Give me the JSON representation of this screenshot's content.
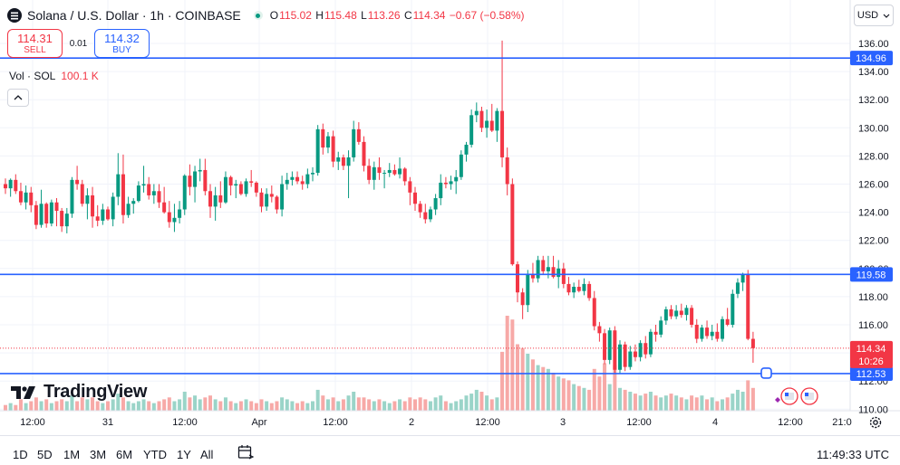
{
  "header": {
    "symbol": "Solana / U.S. Dollar · 1h · COINBASE",
    "ohlc": [
      {
        "k": "O",
        "v": "115.02"
      },
      {
        "k": "H",
        "v": "115.48"
      },
      {
        "k": "L",
        "v": "113.26"
      },
      {
        "k": "C",
        "v": "114.34"
      }
    ],
    "change": "−0.67 (−0.58%)",
    "currency": "USD"
  },
  "trade": {
    "sell_price": "114.31",
    "sell_label": "SELL",
    "spread": "0.01",
    "buy_price": "114.32",
    "buy_label": "BUY"
  },
  "volume": {
    "label": "Vol · SOL",
    "value": "100.1 K"
  },
  "logo_text": "TradingView",
  "timeframes": [
    "1D",
    "5D",
    "1M",
    "3M",
    "6M",
    "YTD",
    "1Y",
    "All"
  ],
  "clock": "11:49:33 UTC",
  "colors": {
    "up": "#089981",
    "down": "#f23645",
    "hline": "#2962ff",
    "up_vol": "#9ad4c8",
    "down_vol": "#f7a9a7"
  },
  "chart_data": {
    "type": "candlestick",
    "y_ticks": [
      110,
      112,
      114,
      116,
      118,
      120,
      122,
      124,
      126,
      128,
      130,
      132,
      134,
      136
    ],
    "x_tick_labels": [
      "12:00",
      "31",
      "12:00",
      "Apr",
      "12:00",
      "2",
      "12:00",
      "3",
      "12:00",
      "4",
      "12:00",
      "21:0"
    ],
    "horizontal_lines": [
      134.96,
      119.58,
      112.53
    ],
    "last_price": {
      "value": "114.34",
      "countdown": "10:26"
    },
    "candles": [
      [
        126.0,
        126.4,
        125.3,
        125.7
      ],
      [
        125.7,
        126.4,
        125.1,
        126.3
      ],
      [
        126.3,
        126.7,
        125.3,
        125.5
      ],
      [
        125.5,
        126.1,
        124.5,
        124.7
      ],
      [
        124.7,
        125.9,
        124.2,
        125.4
      ],
      [
        125.4,
        125.8,
        124.0,
        124.5
      ],
      [
        124.5,
        124.8,
        122.8,
        123.1
      ],
      [
        123.1,
        125.6,
        122.9,
        124.6
      ],
      [
        124.6,
        124.7,
        122.9,
        123.2
      ],
      [
        123.2,
        124.9,
        123.0,
        124.7
      ],
      [
        124.7,
        125.0,
        123.0,
        124.1
      ],
      [
        124.1,
        124.3,
        122.6,
        123.0
      ],
      [
        123.0,
        124.3,
        122.5,
        123.9
      ],
      [
        123.9,
        126.5,
        123.6,
        126.3
      ],
      [
        126.3,
        127.3,
        125.6,
        126.0
      ],
      [
        126.0,
        126.3,
        124.4,
        124.6
      ],
      [
        124.6,
        125.7,
        123.5,
        125.2
      ],
      [
        125.2,
        125.8,
        122.9,
        123.7
      ],
      [
        123.7,
        124.5,
        123.0,
        123.4
      ],
      [
        123.4,
        124.6,
        123.1,
        124.2
      ],
      [
        124.2,
        124.4,
        123.4,
        123.5
      ],
      [
        123.5,
        125.4,
        123.0,
        125.1
      ],
      [
        125.1,
        128.2,
        124.5,
        126.7
      ],
      [
        126.7,
        128.1,
        123.2,
        123.8
      ],
      [
        123.8,
        125.1,
        123.6,
        124.6
      ],
      [
        124.6,
        125.0,
        123.9,
        124.8
      ],
      [
        124.8,
        126.2,
        124.7,
        125.9
      ],
      [
        125.9,
        127.3,
        125.4,
        126.0
      ],
      [
        126.0,
        126.5,
        124.9,
        125.2
      ],
      [
        125.2,
        126.0,
        124.6,
        125.5
      ],
      [
        125.5,
        126.0,
        124.3,
        124.7
      ],
      [
        124.7,
        125.8,
        123.9,
        124.0
      ],
      [
        124.0,
        124.8,
        122.9,
        123.3
      ],
      [
        123.3,
        124.6,
        122.6,
        123.6
      ],
      [
        123.6,
        124.8,
        123.2,
        124.2
      ],
      [
        124.2,
        126.7,
        123.8,
        126.6
      ],
      [
        126.6,
        127.4,
        125.2,
        125.8
      ],
      [
        125.8,
        127.3,
        124.7,
        126.9
      ],
      [
        126.9,
        127.8,
        126.2,
        127.0
      ],
      [
        127.0,
        127.8,
        125.2,
        125.5
      ],
      [
        125.5,
        126.0,
        123.6,
        124.4
      ],
      [
        124.4,
        125.8,
        123.4,
        125.2
      ],
      [
        125.2,
        126.2,
        124.3,
        124.7
      ],
      [
        124.7,
        126.9,
        124.6,
        126.5
      ],
      [
        126.5,
        126.6,
        125.2,
        125.9
      ],
      [
        125.9,
        126.3,
        125.0,
        126.0
      ],
      [
        126.0,
        126.2,
        125.2,
        125.3
      ],
      [
        125.3,
        126.4,
        125.1,
        126.2
      ],
      [
        126.2,
        127.0,
        125.8,
        126.1
      ],
      [
        126.1,
        126.2,
        125.1,
        125.4
      ],
      [
        125.4,
        125.7,
        124.0,
        124.4
      ],
      [
        124.4,
        125.7,
        124.1,
        125.3
      ],
      [
        125.3,
        125.9,
        124.7,
        125.1
      ],
      [
        125.1,
        125.2,
        123.9,
        124.2
      ],
      [
        124.2,
        126.6,
        123.7,
        126.0
      ],
      [
        126.0,
        126.8,
        125.6,
        126.3
      ],
      [
        126.3,
        126.9,
        125.9,
        126.5
      ],
      [
        126.5,
        126.9,
        126.0,
        126.2
      ],
      [
        126.2,
        126.6,
        125.6,
        126.0
      ],
      [
        126.0,
        127.1,
        125.7,
        126.7
      ],
      [
        126.7,
        127.2,
        126.2,
        126.8
      ],
      [
        126.8,
        130.2,
        126.6,
        129.9
      ],
      [
        129.9,
        130.3,
        128.1,
        128.6
      ],
      [
        128.6,
        129.7,
        128.2,
        129.4
      ],
      [
        129.4,
        129.8,
        127.2,
        127.6
      ],
      [
        127.6,
        128.3,
        127.0,
        127.9
      ],
      [
        127.9,
        128.1,
        127.0,
        127.3
      ],
      [
        127.3,
        128.4,
        125.0,
        127.9
      ],
      [
        127.9,
        130.5,
        127.6,
        129.9
      ],
      [
        129.9,
        130.4,
        128.8,
        129.0
      ],
      [
        129.0,
        129.4,
        126.9,
        127.3
      ],
      [
        127.3,
        127.8,
        126.0,
        126.3
      ],
      [
        126.3,
        127.6,
        125.6,
        127.2
      ],
      [
        127.2,
        127.9,
        126.3,
        126.8
      ],
      [
        126.8,
        127.0,
        125.7,
        126.8
      ],
      [
        126.8,
        127.5,
        126.5,
        127.0
      ],
      [
        127.0,
        127.4,
        126.6,
        126.7
      ],
      [
        126.7,
        127.9,
        126.4,
        127.1
      ],
      [
        127.1,
        127.2,
        125.9,
        126.2
      ],
      [
        126.2,
        126.5,
        124.5,
        125.4
      ],
      [
        125.4,
        125.8,
        124.1,
        124.6
      ],
      [
        124.6,
        124.8,
        123.6,
        124.0
      ],
      [
        124.0,
        124.6,
        123.2,
        123.5
      ],
      [
        123.5,
        124.4,
        123.3,
        124.2
      ],
      [
        124.2,
        125.3,
        123.8,
        125.0
      ],
      [
        125.0,
        126.7,
        124.5,
        126.1
      ],
      [
        126.1,
        126.5,
        125.7,
        126.0
      ],
      [
        126.0,
        126.6,
        125.6,
        126.2
      ],
      [
        126.2,
        127.0,
        125.3,
        126.5
      ],
      [
        126.5,
        128.4,
        126.3,
        128.1
      ],
      [
        128.1,
        129.0,
        127.6,
        128.8
      ],
      [
        128.8,
        131.3,
        128.6,
        130.9
      ],
      [
        130.9,
        131.8,
        130.4,
        131.2
      ],
      [
        131.2,
        131.5,
        129.7,
        130.0
      ],
      [
        130.0,
        131.3,
        129.3,
        130.5
      ],
      [
        130.5,
        131.7,
        129.7,
        129.8
      ],
      [
        129.8,
        131.4,
        129.0,
        131.2
      ],
      [
        131.2,
        136.2,
        127.2,
        127.9
      ],
      [
        127.9,
        128.6,
        125.2,
        126.0
      ],
      [
        126.0,
        126.4,
        120.2,
        120.3
      ],
      [
        120.3,
        120.5,
        117.6,
        118.3
      ],
      [
        118.3,
        118.6,
        116.4,
        117.4
      ],
      [
        117.4,
        119.9,
        116.9,
        119.6
      ],
      [
        119.6,
        120.4,
        119.0,
        119.3
      ],
      [
        119.3,
        120.9,
        119.0,
        120.6
      ],
      [
        120.6,
        120.9,
        119.6,
        119.8
      ],
      [
        119.8,
        120.9,
        119.3,
        120.1
      ],
      [
        120.1,
        120.9,
        119.3,
        119.4
      ],
      [
        119.4,
        120.6,
        118.6,
        120.0
      ],
      [
        120.0,
        120.4,
        118.6,
        118.9
      ],
      [
        118.9,
        119.4,
        118.1,
        118.3
      ],
      [
        118.3,
        119.0,
        117.9,
        118.7
      ],
      [
        118.7,
        119.2,
        118.3,
        118.4
      ],
      [
        118.4,
        119.3,
        118.1,
        118.9
      ],
      [
        118.9,
        119.1,
        117.7,
        117.9
      ],
      [
        117.9,
        118.4,
        115.6,
        115.9
      ],
      [
        115.9,
        116.2,
        114.8,
        115.4
      ],
      [
        115.4,
        115.7,
        113.2,
        113.5
      ],
      [
        113.5,
        115.8,
        113.2,
        115.6
      ],
      [
        115.6,
        115.9,
        112.5,
        112.8
      ],
      [
        112.8,
        114.9,
        112.5,
        114.6
      ],
      [
        114.6,
        114.8,
        112.7,
        113.0
      ],
      [
        113.0,
        114.5,
        112.8,
        114.1
      ],
      [
        114.1,
        114.6,
        113.4,
        113.7
      ],
      [
        113.7,
        114.9,
        113.4,
        114.7
      ],
      [
        114.7,
        115.2,
        113.6,
        113.9
      ],
      [
        113.9,
        115.7,
        113.7,
        115.5
      ],
      [
        115.5,
        116.0,
        114.8,
        115.3
      ],
      [
        115.3,
        116.6,
        115.1,
        116.3
      ],
      [
        116.3,
        117.3,
        116.0,
        117.1
      ],
      [
        117.1,
        117.4,
        116.4,
        116.6
      ],
      [
        116.6,
        117.4,
        116.4,
        117.0
      ],
      [
        117.0,
        117.5,
        116.5,
        116.7
      ],
      [
        116.7,
        117.4,
        116.3,
        117.2
      ],
      [
        117.2,
        117.4,
        115.8,
        116.0
      ],
      [
        116.0,
        116.4,
        114.7,
        115.0
      ],
      [
        115.0,
        116.0,
        114.8,
        115.8
      ],
      [
        115.8,
        116.3,
        115.0,
        115.2
      ],
      [
        115.2,
        116.0,
        114.9,
        115.5
      ],
      [
        115.5,
        116.1,
        114.8,
        115.0
      ],
      [
        115.0,
        116.6,
        114.8,
        116.4
      ],
      [
        116.4,
        117.2,
        115.9,
        116.0
      ],
      [
        116.0,
        118.5,
        115.8,
        118.2
      ],
      [
        118.2,
        119.3,
        117.9,
        119.0
      ],
      [
        119.0,
        119.7,
        118.4,
        119.6
      ],
      [
        119.6,
        119.9,
        114.9,
        115.0
      ],
      [
        115.0,
        115.5,
        113.3,
        114.34
      ]
    ],
    "volumes": [
      3,
      4,
      3,
      6,
      4,
      5,
      7,
      5,
      6,
      4,
      5,
      6,
      5,
      8,
      5,
      7,
      6,
      7,
      5,
      4,
      5,
      6,
      9,
      7,
      5,
      4,
      5,
      6,
      5,
      4,
      5,
      6,
      7,
      5,
      6,
      10,
      7,
      8,
      6,
      7,
      8,
      6,
      5,
      7,
      5,
      4,
      5,
      6,
      5,
      4,
      6,
      5,
      4,
      5,
      7,
      6,
      5,
      4,
      5,
      4,
      5,
      11,
      8,
      6,
      7,
      5,
      6,
      8,
      10,
      7,
      7,
      6,
      5,
      6,
      5,
      4,
      5,
      6,
      5,
      7,
      6,
      7,
      6,
      5,
      7,
      8,
      5,
      4,
      5,
      6,
      8,
      9,
      11,
      10,
      8,
      6,
      7,
      31,
      50,
      48,
      35,
      33,
      30,
      27,
      24,
      23,
      22,
      20,
      18,
      17,
      16,
      14,
      13,
      12,
      11,
      22,
      18,
      25,
      14,
      24,
      12,
      11,
      10,
      9,
      8,
      9,
      10,
      8,
      7,
      8,
      9,
      8,
      7,
      6,
      8,
      7,
      8,
      6,
      7,
      5,
      6,
      7,
      9,
      11,
      10,
      16,
      12
    ]
  }
}
